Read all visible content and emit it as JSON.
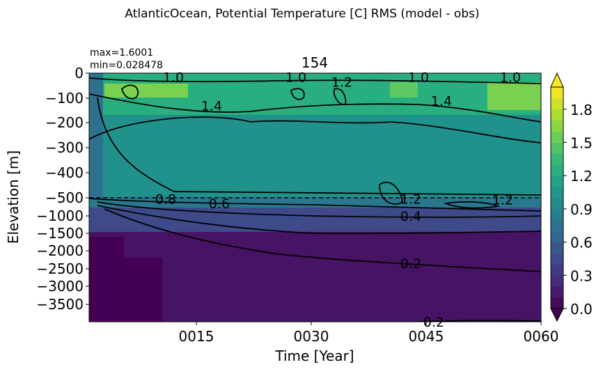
{
  "chart_data": {
    "type": "heatmap",
    "title": "AtlanticOcean, Potential Temperature [C] RMS (model - obs)",
    "subtitle": "154",
    "stats": {
      "max": "max=1.6001",
      "min": "min=0.028478"
    },
    "xlabel": "Time [Year]",
    "ylabel": "Elevation [m]",
    "x_ticks": [
      {
        "label": "0015",
        "value": 15
      },
      {
        "label": "0030",
        "value": 30
      },
      {
        "label": "0045",
        "value": 45
      },
      {
        "label": "0060",
        "value": 60
      }
    ],
    "xlim": [
      1,
      60
    ],
    "y_ticks_upper": [
      "0",
      "−100",
      "−200",
      "−300",
      "−400",
      "−500"
    ],
    "y_ticks_lower": [
      "−1000",
      "−1500",
      "−2000",
      "−2500",
      "−3000",
      "−3500"
    ],
    "y_split": "dashed line at -500 m separates linear upper (0 to -500) and compressed lower (-500 to -4000) panels",
    "colorbar": {
      "ticks": [
        "0.0",
        "0.3",
        "0.6",
        "0.9",
        "1.2",
        "1.5",
        "1.8"
      ],
      "range": [
        0,
        2.0
      ],
      "step": 0.1,
      "extend": "both",
      "colormap": "viridis"
    },
    "contour_labels": [
      {
        "text": "1.0",
        "x": 12,
        "z": -15
      },
      {
        "text": "1.0",
        "x": 28,
        "z": -15
      },
      {
        "text": "1.2",
        "x": 34,
        "z": -35
      },
      {
        "text": "1.0",
        "x": 44,
        "z": -15
      },
      {
        "text": "1.0",
        "x": 56,
        "z": -15
      },
      {
        "text": "1.4",
        "x": 17,
        "z": -130
      },
      {
        "text": "1.4",
        "x": 47,
        "z": -110
      },
      {
        "text": "0.8",
        "x": 11,
        "z": -525
      },
      {
        "text": "0.6",
        "x": 18,
        "z": -650
      },
      {
        "text": "1.2",
        "x": 43,
        "z": -530
      },
      {
        "text": "1.2",
        "x": 55,
        "z": -550
      },
      {
        "text": "0.4",
        "x": 43,
        "z": -1000
      },
      {
        "text": "0.2",
        "x": 43,
        "z": -2350
      },
      {
        "text": "0.2",
        "x": 46,
        "z": -4000
      }
    ]
  }
}
